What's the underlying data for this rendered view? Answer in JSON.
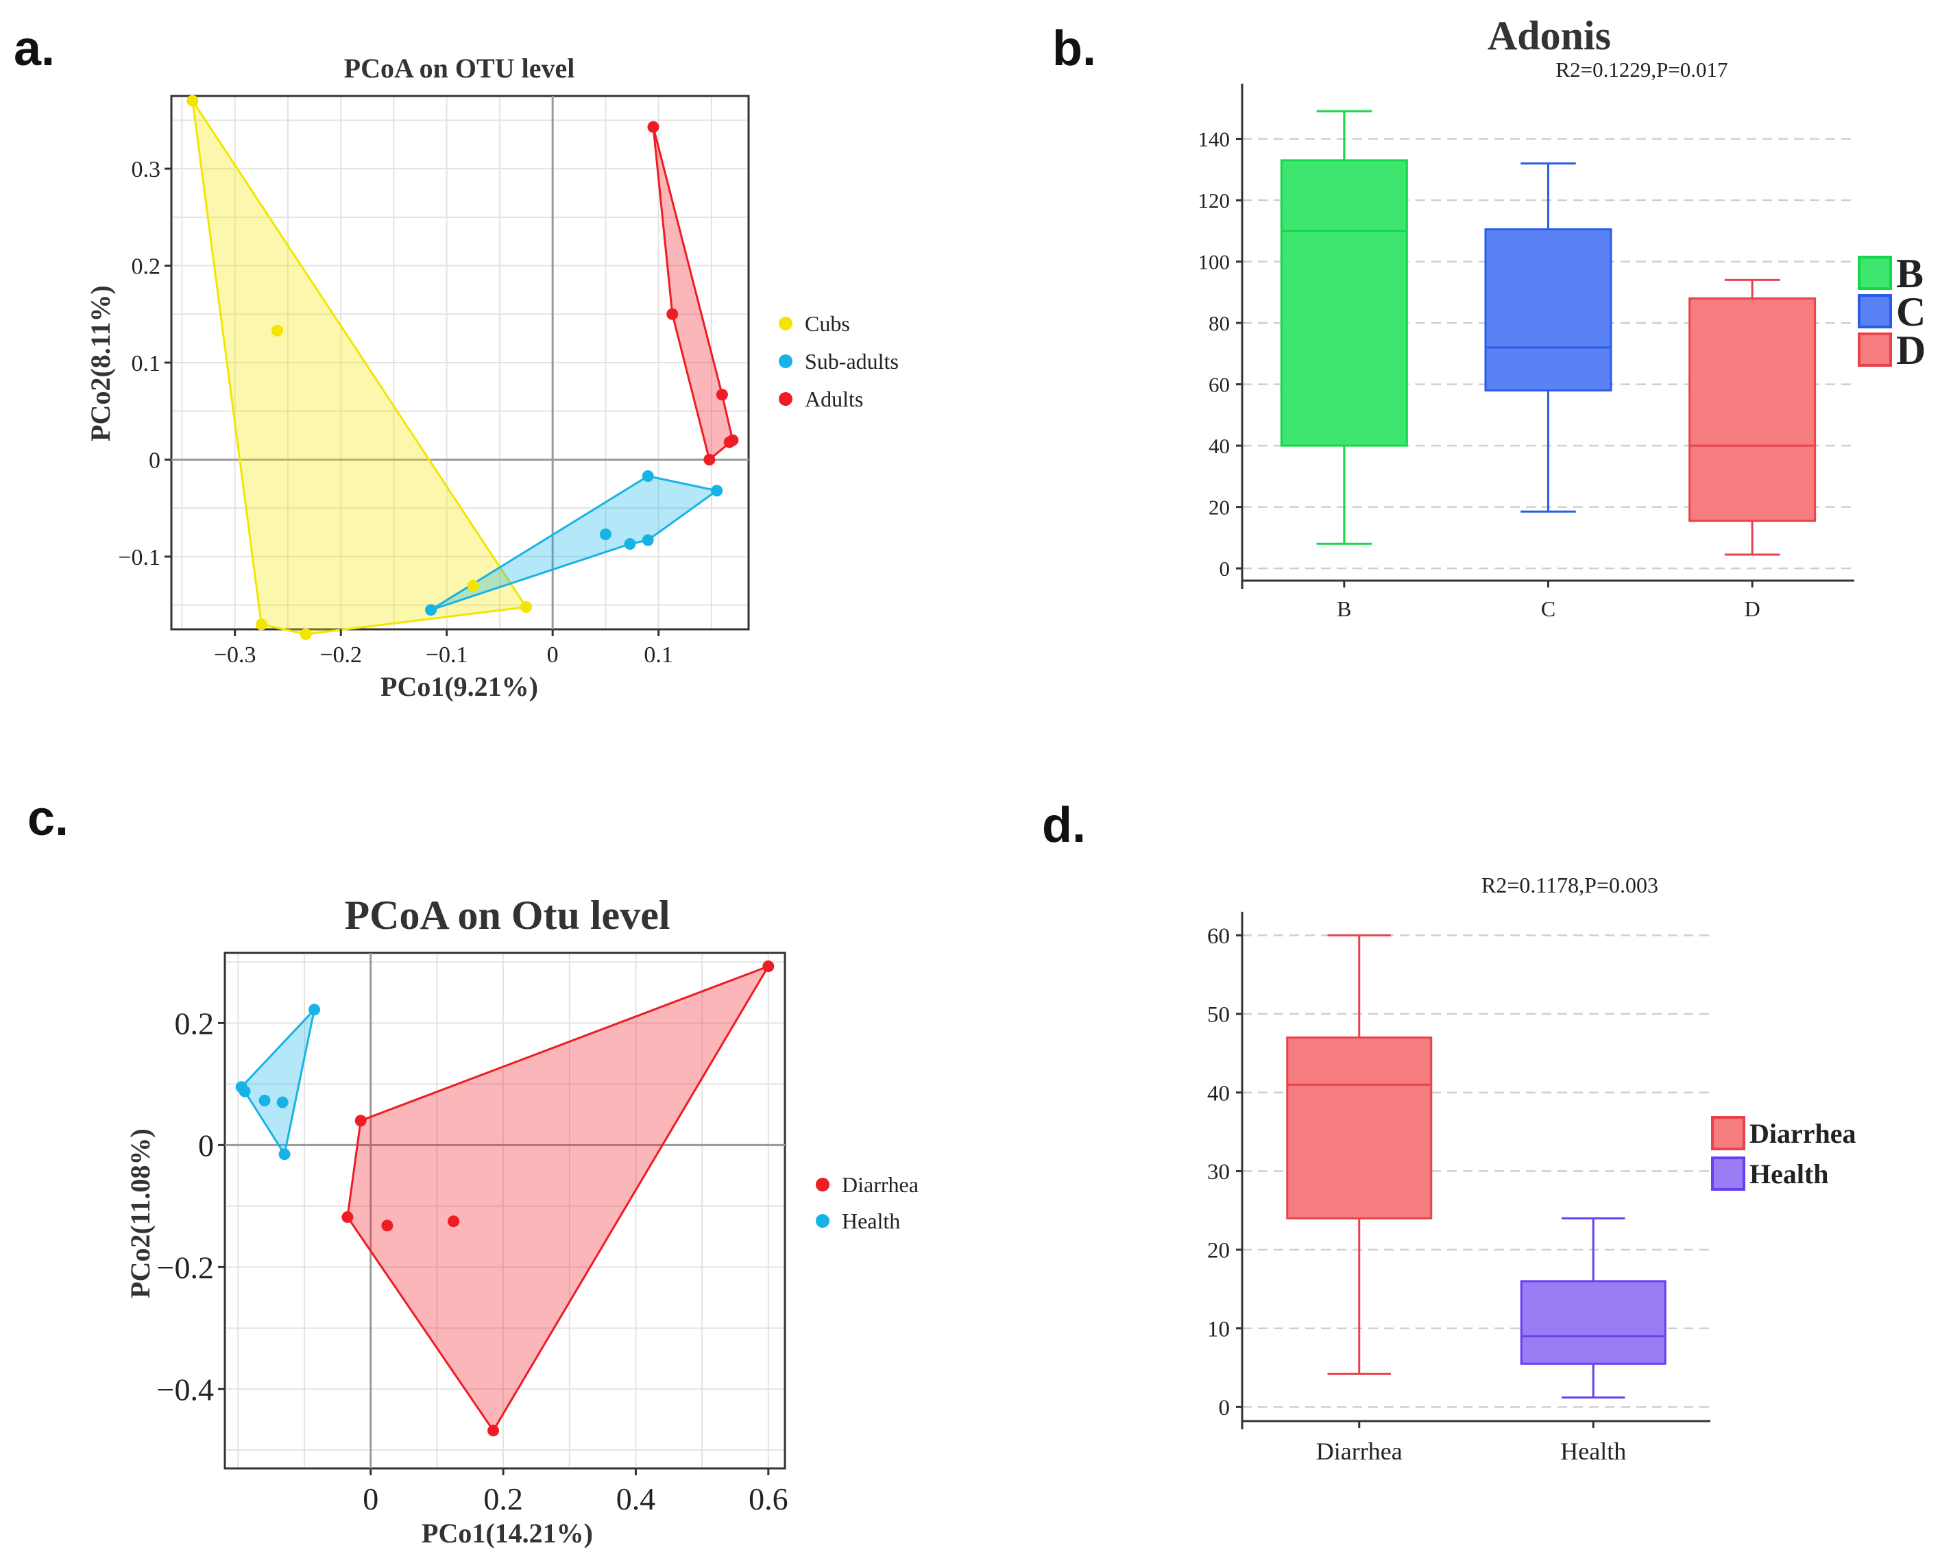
{
  "panel_labels": {
    "a": "a.",
    "b": "b.",
    "c": "c.",
    "d": "d."
  },
  "colors": {
    "cubs": "#f2e600",
    "subadults": "#16b4e6",
    "adults": "#ee1c24",
    "boxB": "#3ee670",
    "boxC": "#5a82f5",
    "boxD": "#f57d80",
    "diarrhea": "#f57d80",
    "health": "#9a7cf5",
    "diarrhea_point": "#ee1c24",
    "health_point": "#16b4e6"
  },
  "chart_data": [
    {
      "id": "a",
      "type": "scatter",
      "title": "PCoA on OTU level",
      "xlabel": "PCo1(9.21%)",
      "ylabel": "PCo2(8.11%)",
      "xlim": [
        -0.36,
        0.185
      ],
      "ylim": [
        -0.175,
        0.375
      ],
      "xticks": [
        -0.3,
        -0.2,
        -0.1,
        0,
        0.1
      ],
      "xtick_labels": [
        "−0.3",
        "−0.2",
        "−0.1",
        "0",
        "0.1"
      ],
      "yticks": [
        -0.1,
        0,
        0.1,
        0.2,
        0.3
      ],
      "ytick_labels": [
        "−0.1",
        "0",
        "0.1",
        "0.2",
        "0.3"
      ],
      "series": [
        {
          "name": "Cubs",
          "color": "#f2e600",
          "points": [
            [
              -0.34,
              0.37
            ],
            [
              -0.26,
              0.133
            ],
            [
              -0.275,
              -0.17
            ],
            [
              -0.233,
              -0.18
            ],
            [
              -0.075,
              -0.13
            ],
            [
              -0.025,
              -0.152
            ]
          ],
          "hull": [
            [
              -0.34,
              0.37
            ],
            [
              -0.275,
              -0.17
            ],
            [
              -0.233,
              -0.18
            ],
            [
              -0.025,
              -0.152
            ]
          ]
        },
        {
          "name": "Sub-adults",
          "color": "#16b4e6",
          "points": [
            [
              -0.115,
              -0.155
            ],
            [
              0.09,
              -0.017
            ],
            [
              0.155,
              -0.032
            ],
            [
              0.05,
              -0.077
            ],
            [
              0.073,
              -0.087
            ],
            [
              0.09,
              -0.083
            ]
          ],
          "hull": [
            [
              -0.115,
              -0.155
            ],
            [
              0.09,
              -0.017
            ],
            [
              0.155,
              -0.032
            ],
            [
              0.09,
              -0.083
            ],
            [
              0.073,
              -0.087
            ]
          ]
        },
        {
          "name": "Adults",
          "color": "#ee1c24",
          "points": [
            [
              0.095,
              0.343
            ],
            [
              0.113,
              0.15
            ],
            [
              0.16,
              0.067
            ],
            [
              0.148,
              0.0
            ],
            [
              0.167,
              0.018
            ],
            [
              0.17,
              0.02
            ]
          ],
          "hull": [
            [
              0.095,
              0.343
            ],
            [
              0.16,
              0.067
            ],
            [
              0.17,
              0.02
            ],
            [
              0.148,
              0.0
            ],
            [
              0.113,
              0.15
            ]
          ]
        }
      ],
      "legend": [
        "Cubs",
        "Sub-adults",
        "Adults"
      ]
    },
    {
      "id": "b",
      "type": "box",
      "title": "Adonis",
      "stat": "R2=0.1229,P=0.017",
      "categories": [
        "B",
        "C",
        "D"
      ],
      "ylim": [
        -4,
        158
      ],
      "yticks": [
        0,
        20,
        40,
        60,
        80,
        100,
        120,
        140
      ],
      "boxes": [
        {
          "name": "B",
          "min": 8,
          "q1": 40,
          "median": 110,
          "q3": 133,
          "max": 149
        },
        {
          "name": "C",
          "min": 18.5,
          "q1": 58,
          "median": 72,
          "q3": 110.5,
          "max": 132
        },
        {
          "name": "D",
          "min": 4.5,
          "q1": 15.5,
          "median": 40,
          "q3": 88,
          "max": 94
        }
      ],
      "legend": [
        "B",
        "C",
        "D"
      ]
    },
    {
      "id": "c",
      "type": "scatter",
      "title": "PCoA on Otu level",
      "xlabel": "PCo1(14.21%)",
      "ylabel": "PCo2(11.08%)",
      "xlim": [
        -0.22,
        0.625
      ],
      "ylim": [
        -0.53,
        0.315
      ],
      "xticks": [
        0,
        0.2,
        0.4,
        0.6
      ],
      "xtick_labels": [
        "0",
        "0.2",
        "0.4",
        "0.6"
      ],
      "yticks": [
        -0.4,
        -0.2,
        0,
        0.2
      ],
      "ytick_labels": [
        "−0.4",
        "−0.2",
        "0",
        "0.2"
      ],
      "series": [
        {
          "name": "Diarrhea",
          "color": "#ee1c24",
          "points": [
            [
              0.6,
              0.293
            ],
            [
              -0.015,
              0.04
            ],
            [
              -0.035,
              -0.118
            ],
            [
              0.025,
              -0.132
            ],
            [
              0.125,
              -0.125
            ],
            [
              0.185,
              -0.468
            ]
          ],
          "hull": [
            [
              0.6,
              0.293
            ],
            [
              0.185,
              -0.468
            ],
            [
              -0.035,
              -0.118
            ],
            [
              -0.015,
              0.04
            ]
          ]
        },
        {
          "name": "Health",
          "color": "#16b4e6",
          "points": [
            [
              -0.085,
              0.222
            ],
            [
              -0.195,
              0.095
            ],
            [
              -0.19,
              0.088
            ],
            [
              -0.16,
              0.073
            ],
            [
              -0.133,
              0.07
            ],
            [
              -0.13,
              -0.015
            ]
          ],
          "hull": [
            [
              -0.085,
              0.222
            ],
            [
              -0.13,
              -0.015
            ],
            [
              -0.19,
              0.088
            ],
            [
              -0.195,
              0.095
            ]
          ]
        }
      ],
      "legend": [
        "Diarrhea",
        "Health"
      ]
    },
    {
      "id": "d",
      "type": "box",
      "title": "",
      "stat": "R2=0.1178,P=0.003",
      "categories": [
        "Diarrhea",
        "Health"
      ],
      "ylim": [
        -1.8,
        63
      ],
      "yticks": [
        0,
        10,
        20,
        30,
        40,
        50,
        60
      ],
      "boxes": [
        {
          "name": "Diarrhea",
          "min": 4.2,
          "q1": 24,
          "median": 41,
          "q3": 47,
          "max": 60
        },
        {
          "name": "Health",
          "min": 1.2,
          "q1": 5.5,
          "median": 9,
          "q3": 16,
          "max": 24
        }
      ],
      "legend": [
        "Diarrhea",
        "Health"
      ]
    }
  ]
}
